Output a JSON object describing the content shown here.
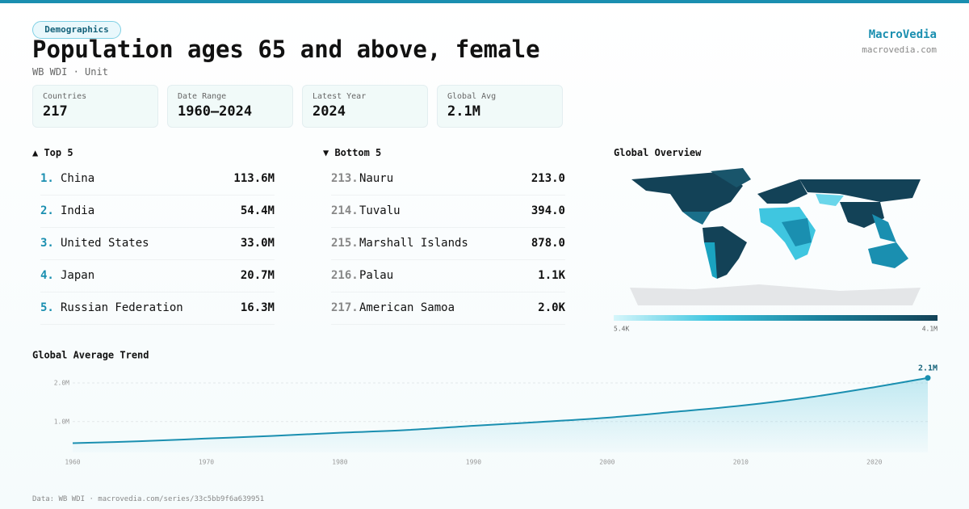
{
  "header": {
    "tag": "Demographics",
    "title": "Population ages 65 and above, female",
    "subtitle": "WB WDI · Unit",
    "brand": "MacroVedia",
    "site": "macrovedia.com"
  },
  "stats": [
    {
      "label": "Countries",
      "value": "217"
    },
    {
      "label": "Date Range",
      "value": "1960–2024"
    },
    {
      "label": "Latest Year",
      "value": "2024"
    },
    {
      "label": "Global Avg",
      "value": "2.1M"
    }
  ],
  "top": {
    "title": "▲ Top 5",
    "rows": [
      {
        "rank": "1.",
        "name": "China",
        "value": "113.6M"
      },
      {
        "rank": "2.",
        "name": "India",
        "value": "54.4M"
      },
      {
        "rank": "3.",
        "name": "United States",
        "value": "33.0M"
      },
      {
        "rank": "4.",
        "name": "Japan",
        "value": "20.7M"
      },
      {
        "rank": "5.",
        "name": "Russian Federation",
        "value": "16.3M"
      }
    ]
  },
  "bottom": {
    "title": "▼ Bottom 5",
    "rows": [
      {
        "rank": "213.",
        "name": "Nauru",
        "value": "213.0"
      },
      {
        "rank": "214.",
        "name": "Tuvalu",
        "value": "394.0"
      },
      {
        "rank": "215.",
        "name": "Marshall Islands",
        "value": "878.0"
      },
      {
        "rank": "216.",
        "name": "Palau",
        "value": "1.1K"
      },
      {
        "rank": "217.",
        "name": "American Samoa",
        "value": "2.0K"
      }
    ]
  },
  "map": {
    "title": "Global Overview",
    "legend_min": "5.4K",
    "legend_max": "4.1M"
  },
  "chart_data": {
    "type": "line",
    "title": "Global Average Trend",
    "color": "#1a8fb0",
    "x": [
      1960,
      1965,
      1970,
      1975,
      1980,
      1985,
      1990,
      1995,
      2000,
      2005,
      2010,
      2015,
      2020,
      2024
    ],
    "values": [
      440000,
      490000,
      560000,
      630000,
      710000,
      780000,
      890000,
      990000,
      1100000,
      1250000,
      1410000,
      1620000,
      1890000,
      2130000
    ],
    "value_labels": [
      null,
      null,
      null,
      null,
      null,
      null,
      null,
      null,
      null,
      null,
      null,
      null,
      null,
      "2.1M"
    ],
    "xlim": [
      1960,
      2024
    ],
    "xticks": [
      1960,
      1970,
      1980,
      1990,
      2000,
      2010,
      2020
    ],
    "ylim": [
      200000,
      2300000
    ],
    "yticks": [
      {
        "value": 1000000,
        "label": "1.0M"
      },
      {
        "value": 2000000,
        "label": "2.0M"
      }
    ],
    "grid": true
  },
  "footer": "Data: WB WDI · macrovedia.com/series/33c5bb9f6a639951"
}
